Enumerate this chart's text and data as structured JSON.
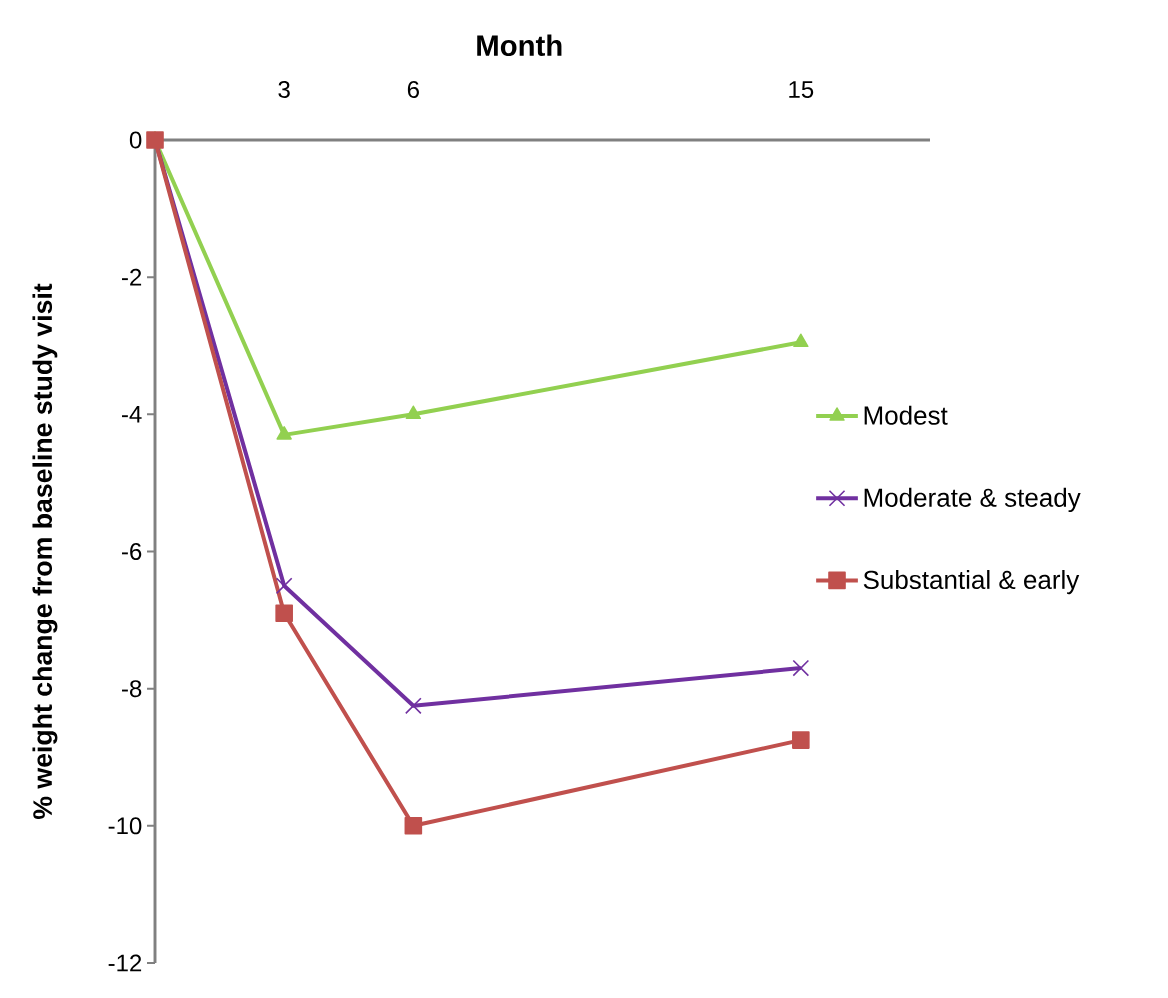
{
  "chart_data": {
    "type": "line",
    "xlabel": "Month",
    "ylabel": "% weight change from baseline study visit",
    "x": [
      0,
      3,
      6,
      15
    ],
    "xlim": [
      0,
      18
    ],
    "xticks": [
      3,
      6,
      15
    ],
    "ylim": [
      -12,
      0
    ],
    "yticks": [
      -12,
      -10,
      -8,
      -6,
      -4,
      -2,
      0
    ],
    "legend": "right",
    "grid": false,
    "series": [
      {
        "name": "Modest",
        "color": "#92d050",
        "marker": "triangle",
        "values": [
          0,
          -4.3,
          -4.0,
          -2.95
        ]
      },
      {
        "name": "Moderate & steady",
        "color": "#7030a0",
        "marker": "cross",
        "values": [
          0,
          -6.5,
          -8.25,
          -7.7
        ]
      },
      {
        "name": "Substantial & early",
        "color": "#c0504d",
        "marker": "square",
        "values": [
          0,
          -6.9,
          -10.0,
          -8.75
        ]
      }
    ]
  }
}
